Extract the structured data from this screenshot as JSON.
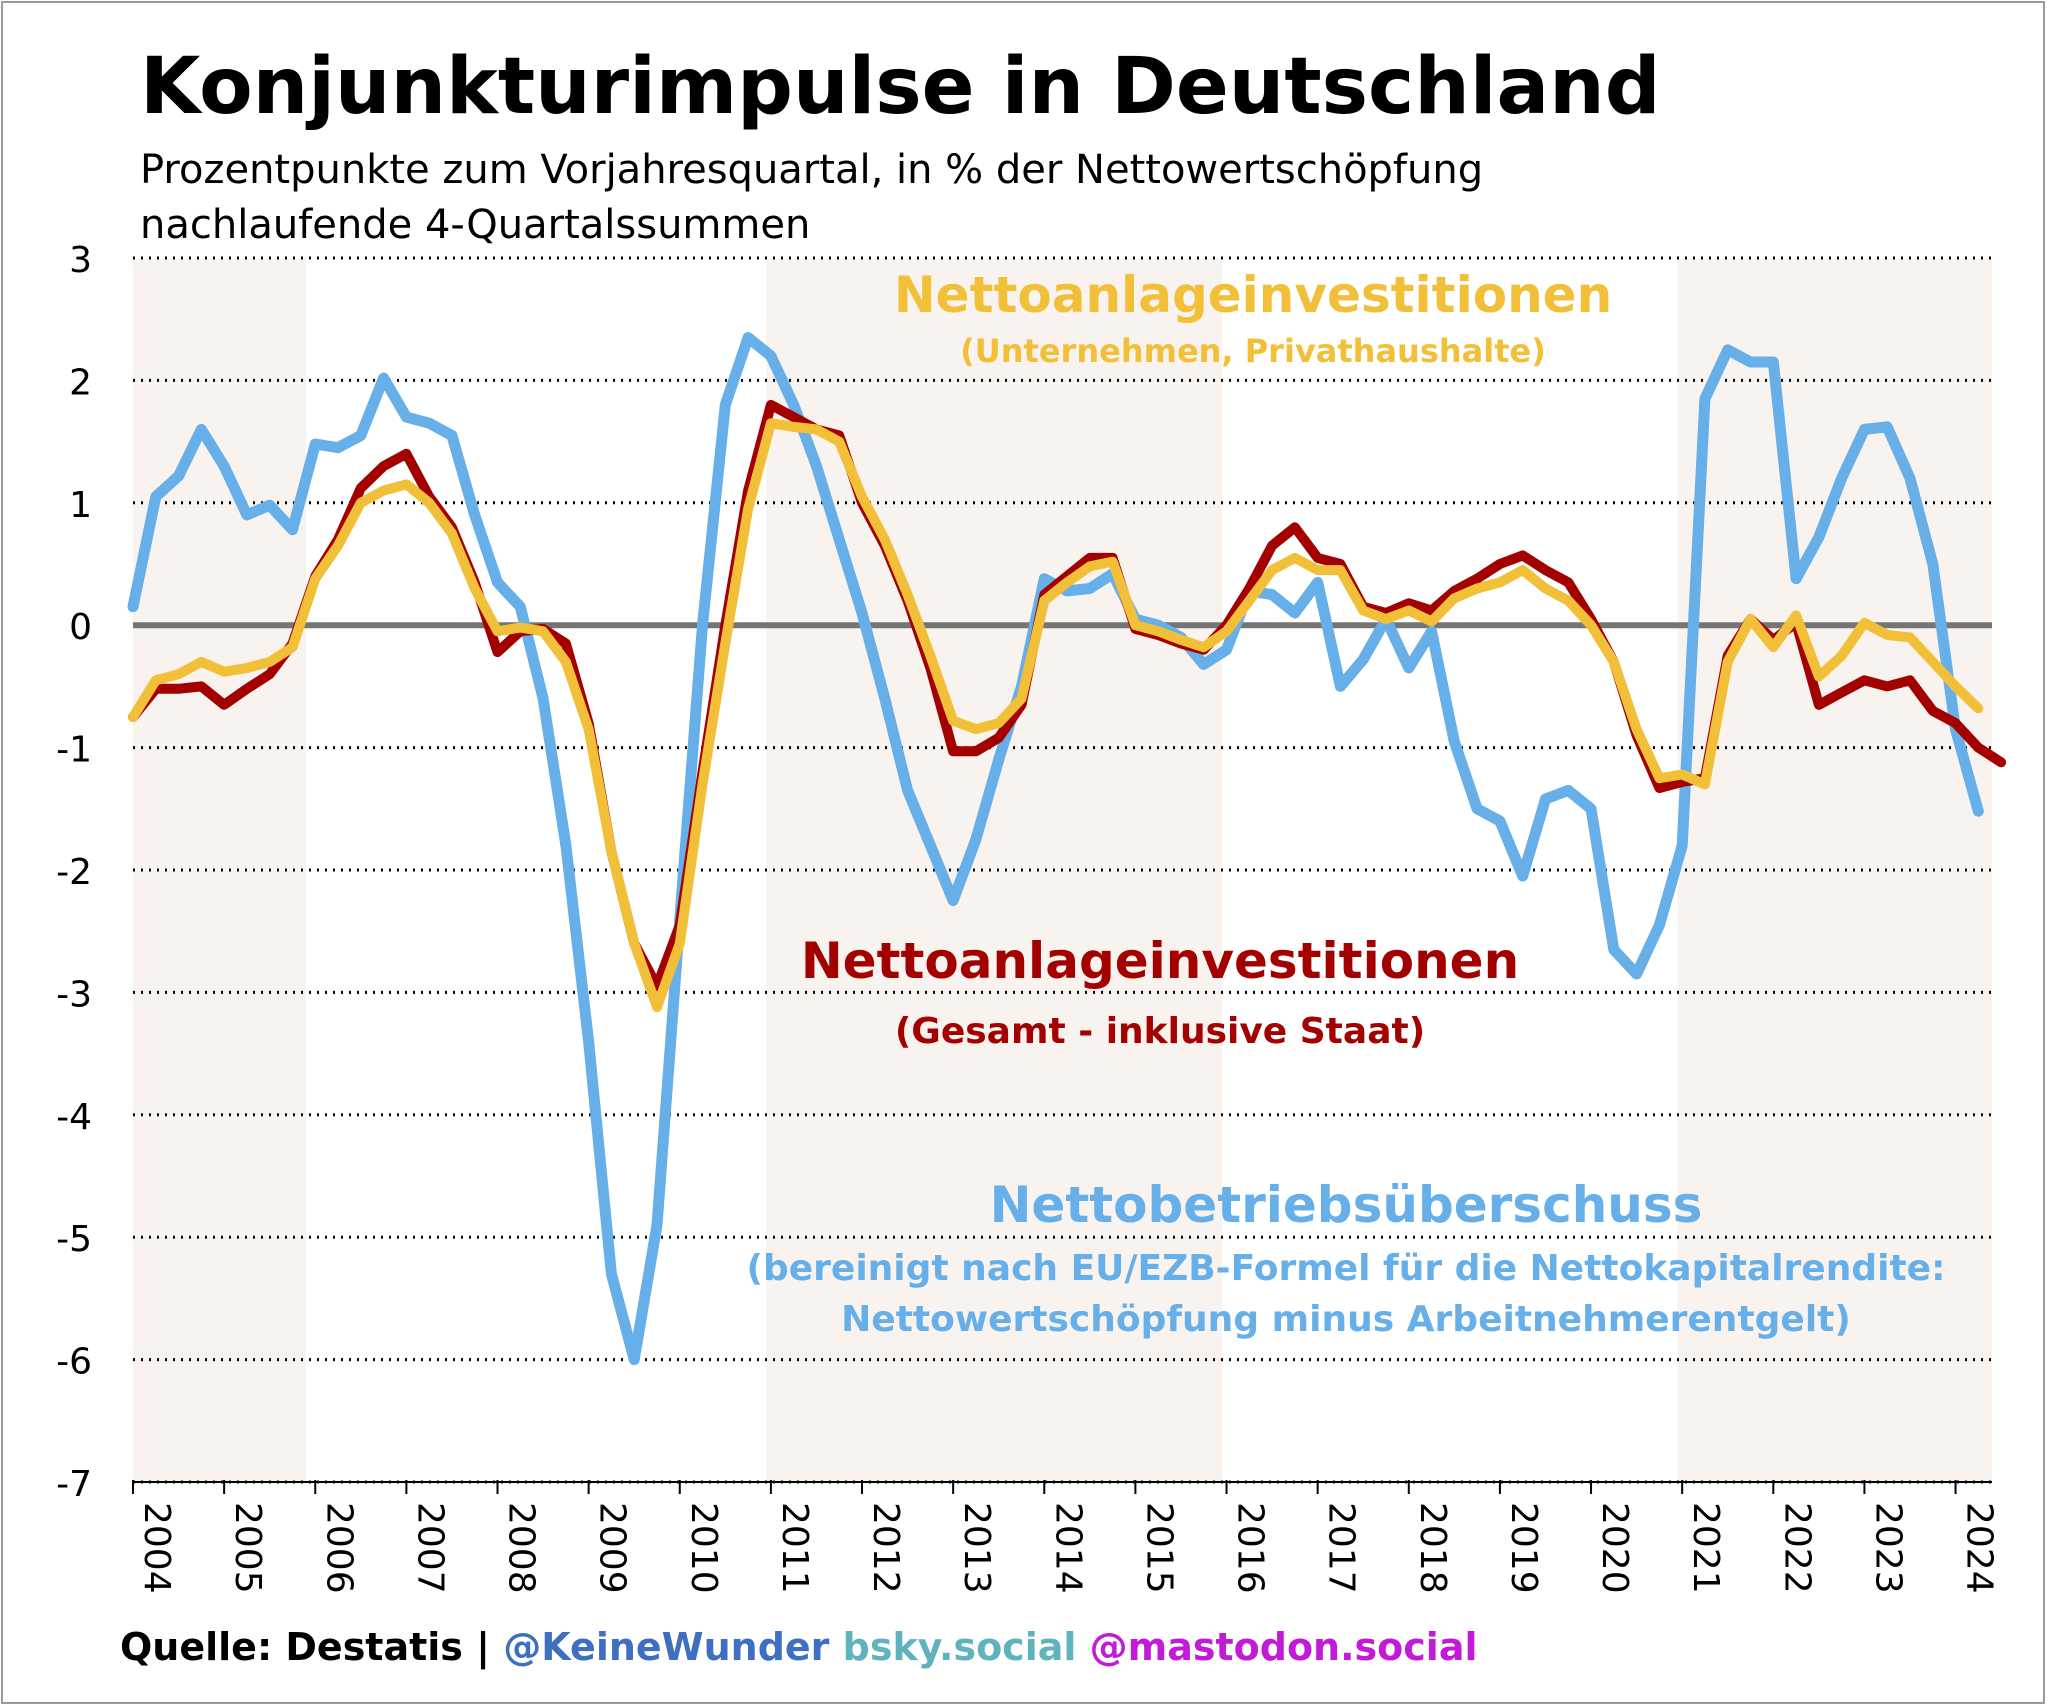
{
  "header": {
    "title": "Konjunkturimpulse in Deutschland",
    "subtitle_line1": "Prozentpunkte zum Vorjahresquartal, in % der Nettowertschöpfung",
    "subtitle_line2": "nachlaufende 4-Quartalssummen"
  },
  "footer": {
    "source": "Quelle: Destatis | ",
    "handle": "@KeineWunder",
    "bsky": " bsky.social",
    "mastodon": " @mastodon.social"
  },
  "chart_data": {
    "type": "line",
    "ylim": [
      -7,
      3
    ],
    "yticks": [
      3,
      2,
      1,
      0,
      -1,
      -2,
      -3,
      -4,
      -5,
      -6,
      -7
    ],
    "xlim": [
      2004.0,
      2024.4
    ],
    "xticks": [
      "2004",
      "2005",
      "2006",
      "2007",
      "2008",
      "2009",
      "2010",
      "2011",
      "2012",
      "2013",
      "2014",
      "2015",
      "2016",
      "2017",
      "2018",
      "2019",
      "2020",
      "2021",
      "2022",
      "2023",
      "2024"
    ],
    "grid": "horizontal dotted",
    "zero_line": true,
    "shaded_periods": [
      [
        2004.0,
        2005.9
      ],
      [
        2010.95,
        2015.95
      ],
      [
        2020.95,
        2024.4
      ]
    ],
    "series": [
      {
        "name": "Nettobetriebsüberschuss",
        "note_line1": "(bereinigt nach EU/EZB-Formel für die Nettokapitalrendite:",
        "note_line2": "Nettowertschöpfung minus Arbeitnehmerentgelt)",
        "color": "#66afe9",
        "x_start": 2004.0,
        "step": 0.25,
        "values": [
          0.15,
          1.05,
          1.22,
          1.6,
          1.3,
          0.9,
          0.98,
          0.78,
          1.48,
          1.45,
          1.55,
          2.02,
          1.7,
          1.65,
          1.55,
          0.9,
          0.35,
          0.15,
          -0.6,
          -1.8,
          -3.4,
          -5.3,
          -6.0,
          -4.9,
          -2.4,
          0.0,
          1.8,
          2.35,
          2.2,
          1.8,
          1.3,
          0.7,
          0.1,
          -0.6,
          -1.35,
          -1.8,
          -2.25,
          -1.75,
          -1.1,
          -0.5,
          0.38,
          0.28,
          0.3,
          0.42,
          0.05,
          0.0,
          -0.1,
          -0.32,
          -0.2,
          0.28,
          0.25,
          0.1,
          0.35,
          -0.5,
          -0.28,
          0.05,
          -0.35,
          -0.05,
          -0.95,
          -1.5,
          -1.6,
          -2.05,
          -1.42,
          -1.35,
          -1.5,
          -2.65,
          -2.85,
          -2.45,
          -1.8,
          1.85,
          2.25,
          2.15,
          2.15,
          0.38,
          0.72,
          1.2,
          1.6,
          1.62,
          1.2,
          0.5,
          -0.85,
          -1.52
        ]
      },
      {
        "name": "Nettoanlageinvestitionen",
        "note": "(Gesamt - inklusive Staat)",
        "color": "#a30000",
        "x_start": 2004.0,
        "step": 0.25,
        "values": [
          -0.75,
          -0.52,
          -0.52,
          -0.5,
          -0.65,
          -0.52,
          -0.4,
          -0.15,
          0.4,
          0.7,
          1.12,
          1.3,
          1.4,
          1.05,
          0.8,
          0.35,
          -0.22,
          -0.05,
          -0.03,
          -0.15,
          -0.8,
          -1.85,
          -2.6,
          -2.95,
          -2.45,
          -1.2,
          0.0,
          1.1,
          1.8,
          1.7,
          1.6,
          1.55,
          1.0,
          0.65,
          0.2,
          -0.35,
          -1.03,
          -1.03,
          -0.92,
          -0.65,
          0.25,
          0.4,
          0.55,
          0.55,
          -0.03,
          -0.08,
          -0.15,
          -0.2,
          0.0,
          0.3,
          0.65,
          0.8,
          0.55,
          0.5,
          0.15,
          0.1,
          0.18,
          0.12,
          0.28,
          0.38,
          0.5,
          0.57,
          0.45,
          0.35,
          0.05,
          -0.3,
          -0.9,
          -1.33,
          -1.28,
          -1.25,
          -0.25,
          0.05,
          -0.12,
          0.02,
          -0.65,
          -0.55,
          -0.45,
          -0.5,
          -0.45,
          -0.7,
          -0.8,
          -1.0,
          -1.12
        ]
      },
      {
        "name": "Nettoanlageinvestitionen",
        "note": "(Unternehmen, Privathaushalte)",
        "color": "#f2bf38",
        "x_start": 2004.0,
        "step": 0.25,
        "values": [
          -0.75,
          -0.45,
          -0.4,
          -0.3,
          -0.38,
          -0.35,
          -0.3,
          -0.18,
          0.38,
          0.65,
          1.0,
          1.1,
          1.15,
          1.0,
          0.75,
          0.3,
          -0.05,
          -0.02,
          -0.05,
          -0.3,
          -0.85,
          -1.85,
          -2.6,
          -3.12,
          -2.6,
          -1.3,
          -0.15,
          0.95,
          1.65,
          1.62,
          1.6,
          1.5,
          1.05,
          0.7,
          0.25,
          -0.25,
          -0.78,
          -0.85,
          -0.8,
          -0.6,
          0.2,
          0.35,
          0.48,
          0.52,
          0.0,
          -0.05,
          -0.12,
          -0.18,
          -0.05,
          0.2,
          0.45,
          0.55,
          0.45,
          0.45,
          0.12,
          0.05,
          0.12,
          0.03,
          0.22,
          0.3,
          0.35,
          0.45,
          0.3,
          0.2,
          0.0,
          -0.3,
          -0.85,
          -1.25,
          -1.22,
          -1.3,
          -0.3,
          0.05,
          -0.18,
          0.08,
          -0.42,
          -0.25,
          0.02,
          -0.08,
          -0.1,
          -0.3,
          -0.5,
          -0.68
        ]
      }
    ]
  }
}
